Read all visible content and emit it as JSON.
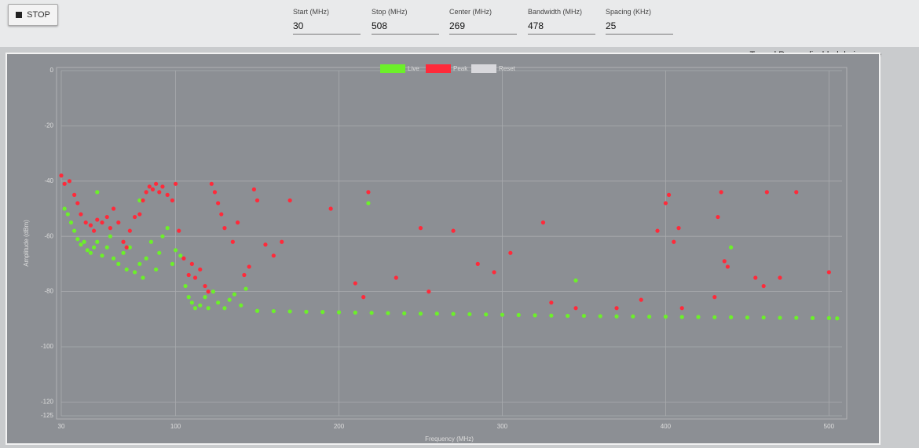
{
  "toolbar": {
    "button": "STOP",
    "fields": [
      {
        "label": "Start (MHz)",
        "value": 30
      },
      {
        "label": "Stop (MHz)",
        "value": 508
      },
      {
        "label": "Center (MHz)",
        "value": 269
      },
      {
        "label": "Bandwidth (MHz)",
        "value": 478
      },
      {
        "label": "Spacing (KHz)",
        "value": 25
      }
    ]
  },
  "notice": "Tx and Rx are disabled during spe",
  "chart_data": {
    "type": "scatter",
    "x_label": "Frequency (MHz)",
    "y_label": "Amplitude (dBm)",
    "xlim": [
      30,
      508
    ],
    "ylim": [
      -125,
      0
    ],
    "xticks": [
      30,
      100,
      200,
      300,
      400,
      500
    ],
    "yticks": [
      0,
      -20,
      -40,
      -60,
      -80,
      -100,
      -120,
      -125
    ],
    "grid": true,
    "series": [
      {
        "name": "Live",
        "color": "#6cf02a",
        "x": [
          32,
          34,
          36,
          38,
          40,
          42,
          44,
          46,
          48,
          50,
          52,
          55,
          58,
          60,
          62,
          65,
          68,
          70,
          72,
          75,
          78,
          80,
          82,
          85,
          88,
          90,
          92,
          95,
          98,
          100,
          103,
          106,
          108,
          110,
          112,
          115,
          118,
          120,
          123,
          126,
          130,
          133,
          136,
          140,
          143,
          78,
          52,
          345,
          440,
          218,
          150,
          160,
          170,
          180,
          190,
          200,
          210,
          220,
          230,
          240,
          250,
          260,
          270,
          280,
          290,
          300,
          310,
          320,
          330,
          340,
          350,
          360,
          370,
          380,
          390,
          400,
          410,
          420,
          430,
          440,
          450,
          460,
          470,
          480,
          490,
          500,
          505
        ],
        "y": [
          -50,
          -52,
          -55,
          -58,
          -61,
          -63,
          -62,
          -65,
          -66,
          -64,
          -62,
          -67,
          -64,
          -60,
          -68,
          -70,
          -66,
          -72,
          -64,
          -73,
          -70,
          -75,
          -68,
          -62,
          -72,
          -66,
          -60,
          -57,
          -70,
          -65,
          -67,
          -78,
          -82,
          -84,
          -86,
          -85,
          -82,
          -86,
          -80,
          -84,
          -86,
          -83,
          -81,
          -85,
          -79,
          -47,
          -44,
          -76,
          -64,
          -48,
          -87,
          -87.1,
          -87.2,
          -87.3,
          -87.4,
          -87.5,
          -87.6,
          -87.7,
          -87.8,
          -87.9,
          -88,
          -88,
          -88.1,
          -88.2,
          -88.3,
          -88.4,
          -88.5,
          -88.6,
          -88.7,
          -88.8,
          -88.8,
          -88.9,
          -89,
          -89,
          -89.1,
          -89.1,
          -89.2,
          -89.2,
          -89.3,
          -89.3,
          -89.4,
          -89.4,
          -89.5,
          -89.5,
          -89.6,
          -89.6,
          -89.7
        ]
      },
      {
        "name": "Peak",
        "color": "#ff2a3a",
        "x": [
          30,
          32,
          35,
          38,
          40,
          42,
          45,
          48,
          50,
          52,
          55,
          58,
          60,
          62,
          65,
          68,
          70,
          72,
          75,
          78,
          80,
          82,
          84,
          86,
          88,
          90,
          92,
          95,
          98,
          100,
          102,
          105,
          108,
          110,
          112,
          115,
          118,
          120,
          122,
          124,
          126,
          128,
          130,
          135,
          138,
          142,
          145,
          148,
          150,
          155,
          160,
          165,
          170,
          195,
          210,
          215,
          218,
          235,
          250,
          255,
          270,
          285,
          295,
          305,
          325,
          330,
          345,
          370,
          385,
          395,
          400,
          402,
          405,
          408,
          410,
          430,
          432,
          434,
          436,
          438,
          455,
          460,
          462,
          470,
          480,
          500
        ],
        "y": [
          -38,
          -41,
          -40,
          -45,
          -48,
          -52,
          -55,
          -56,
          -58,
          -54,
          -55,
          -53,
          -57,
          -50,
          -55,
          -62,
          -64,
          -58,
          -53,
          -52,
          -47,
          -44,
          -42,
          -43,
          -41,
          -44,
          -42,
          -45,
          -47,
          -41,
          -58,
          -68,
          -74,
          -70,
          -75,
          -72,
          -78,
          -80,
          -41,
          -44,
          -48,
          -52,
          -57,
          -62,
          -55,
          -74,
          -71,
          -43,
          -47,
          -63,
          -67,
          -62,
          -47,
          -50,
          -77,
          -82,
          -44,
          -75,
          -57,
          -80,
          -58,
          -70,
          -73,
          -66,
          -55,
          -84,
          -86,
          -86,
          -83,
          -58,
          -48,
          -45,
          -62,
          -57,
          -86,
          -82,
          -53,
          -44,
          -69,
          -71,
          -75,
          -78,
          -44,
          -75,
          -44,
          -73
        ]
      },
      {
        "name": "Reset",
        "color": "#d8d8dc",
        "x": [],
        "y": []
      }
    ]
  }
}
